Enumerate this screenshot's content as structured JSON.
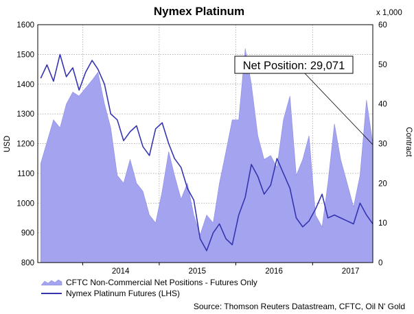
{
  "chart_data": {
    "type": "area",
    "title": "Nymex Platinum",
    "ylabel": "USD",
    "y2label": "Contract",
    "y2_multiplier": "x 1,000",
    "ylim": [
      800,
      1600
    ],
    "y2lim": [
      0,
      60
    ],
    "yticks": [
      "800",
      "900",
      "1000",
      "1100",
      "1200",
      "1300",
      "1400",
      "1500",
      "1600"
    ],
    "y2ticks": [
      "0",
      "10",
      "20",
      "30",
      "40",
      "50",
      "60"
    ],
    "xticks": [
      "2014",
      "2015",
      "2016",
      "2017"
    ],
    "grid": true,
    "series": [
      {
        "name": "CFTC Non-Commercial Net Positions - Futures Only",
        "axis": "right",
        "type": "area",
        "color": "#a3a3ef",
        "x": [
          "2013-06",
          "2013-08",
          "2013-09",
          "2013-10",
          "2013-11",
          "2013-12",
          "2014-01",
          "2014-02",
          "2014-03",
          "2014-04",
          "2014-05",
          "2014-06",
          "2014-07",
          "2014-08",
          "2014-09",
          "2014-10",
          "2014-11",
          "2014-12",
          "2015-01",
          "2015-02",
          "2015-03",
          "2015-04",
          "2015-05",
          "2015-06",
          "2015-07",
          "2015-08",
          "2015-09",
          "2015-10",
          "2015-11",
          "2015-12",
          "2016-01",
          "2016-02",
          "2016-03",
          "2016-04",
          "2016-05",
          "2016-06",
          "2016-07",
          "2016-08",
          "2016-09",
          "2016-10",
          "2016-11",
          "2016-12",
          "2017-01",
          "2017-02",
          "2017-03",
          "2017-04",
          "2017-05",
          "2017-06",
          "2017-07",
          "2017-08",
          "2017-09",
          "2017-10"
        ],
        "values": [
          25,
          36,
          34,
          40,
          43,
          42,
          44,
          46,
          48,
          40,
          34,
          22,
          20,
          26,
          20,
          18,
          12,
          10,
          18,
          28,
          22,
          16,
          20,
          12,
          7,
          12,
          10,
          20,
          28,
          36,
          36,
          54,
          45,
          32,
          26,
          27,
          24,
          36,
          42,
          22,
          26,
          32,
          12,
          9,
          20,
          35,
          26,
          20,
          14,
          22,
          41,
          30
        ]
      },
      {
        "name": "Nymex Platinum Futures (LHS)",
        "axis": "left",
        "type": "line",
        "color": "#3434b0",
        "x": [
          "2013-06",
          "2013-07",
          "2013-08",
          "2013-09",
          "2013-10",
          "2013-11",
          "2013-12",
          "2014-01",
          "2014-02",
          "2014-03",
          "2014-04",
          "2014-05",
          "2014-06",
          "2014-07",
          "2014-08",
          "2014-09",
          "2014-10",
          "2014-11",
          "2014-12",
          "2015-01",
          "2015-02",
          "2015-03",
          "2015-04",
          "2015-05",
          "2015-06",
          "2015-07",
          "2015-08",
          "2015-09",
          "2015-10",
          "2015-11",
          "2015-12",
          "2016-01",
          "2016-02",
          "2016-03",
          "2016-04",
          "2016-05",
          "2016-06",
          "2016-07",
          "2016-08",
          "2016-09",
          "2016-10",
          "2016-11",
          "2016-12",
          "2017-01",
          "2017-02",
          "2017-03",
          "2017-04",
          "2017-05",
          "2017-06",
          "2017-07",
          "2017-08",
          "2017-09",
          "2017-10"
        ],
        "values": [
          1420,
          1465,
          1410,
          1500,
          1425,
          1455,
          1380,
          1440,
          1480,
          1450,
          1400,
          1300,
          1280,
          1210,
          1240,
          1260,
          1190,
          1160,
          1250,
          1270,
          1200,
          1150,
          1120,
          1050,
          1010,
          880,
          840,
          900,
          930,
          880,
          860,
          960,
          1020,
          1130,
          1090,
          1030,
          1060,
          1150,
          1100,
          1050,
          950,
          920,
          940,
          980,
          1030,
          950,
          960,
          950,
          940,
          930,
          1000,
          960,
          930
        ]
      }
    ],
    "annotation": "Net Position: 29,071",
    "legend_position": "bottom-left",
    "source": "Source: Thomson Reuters Datastream, CFTC, Oil N' Gold"
  }
}
